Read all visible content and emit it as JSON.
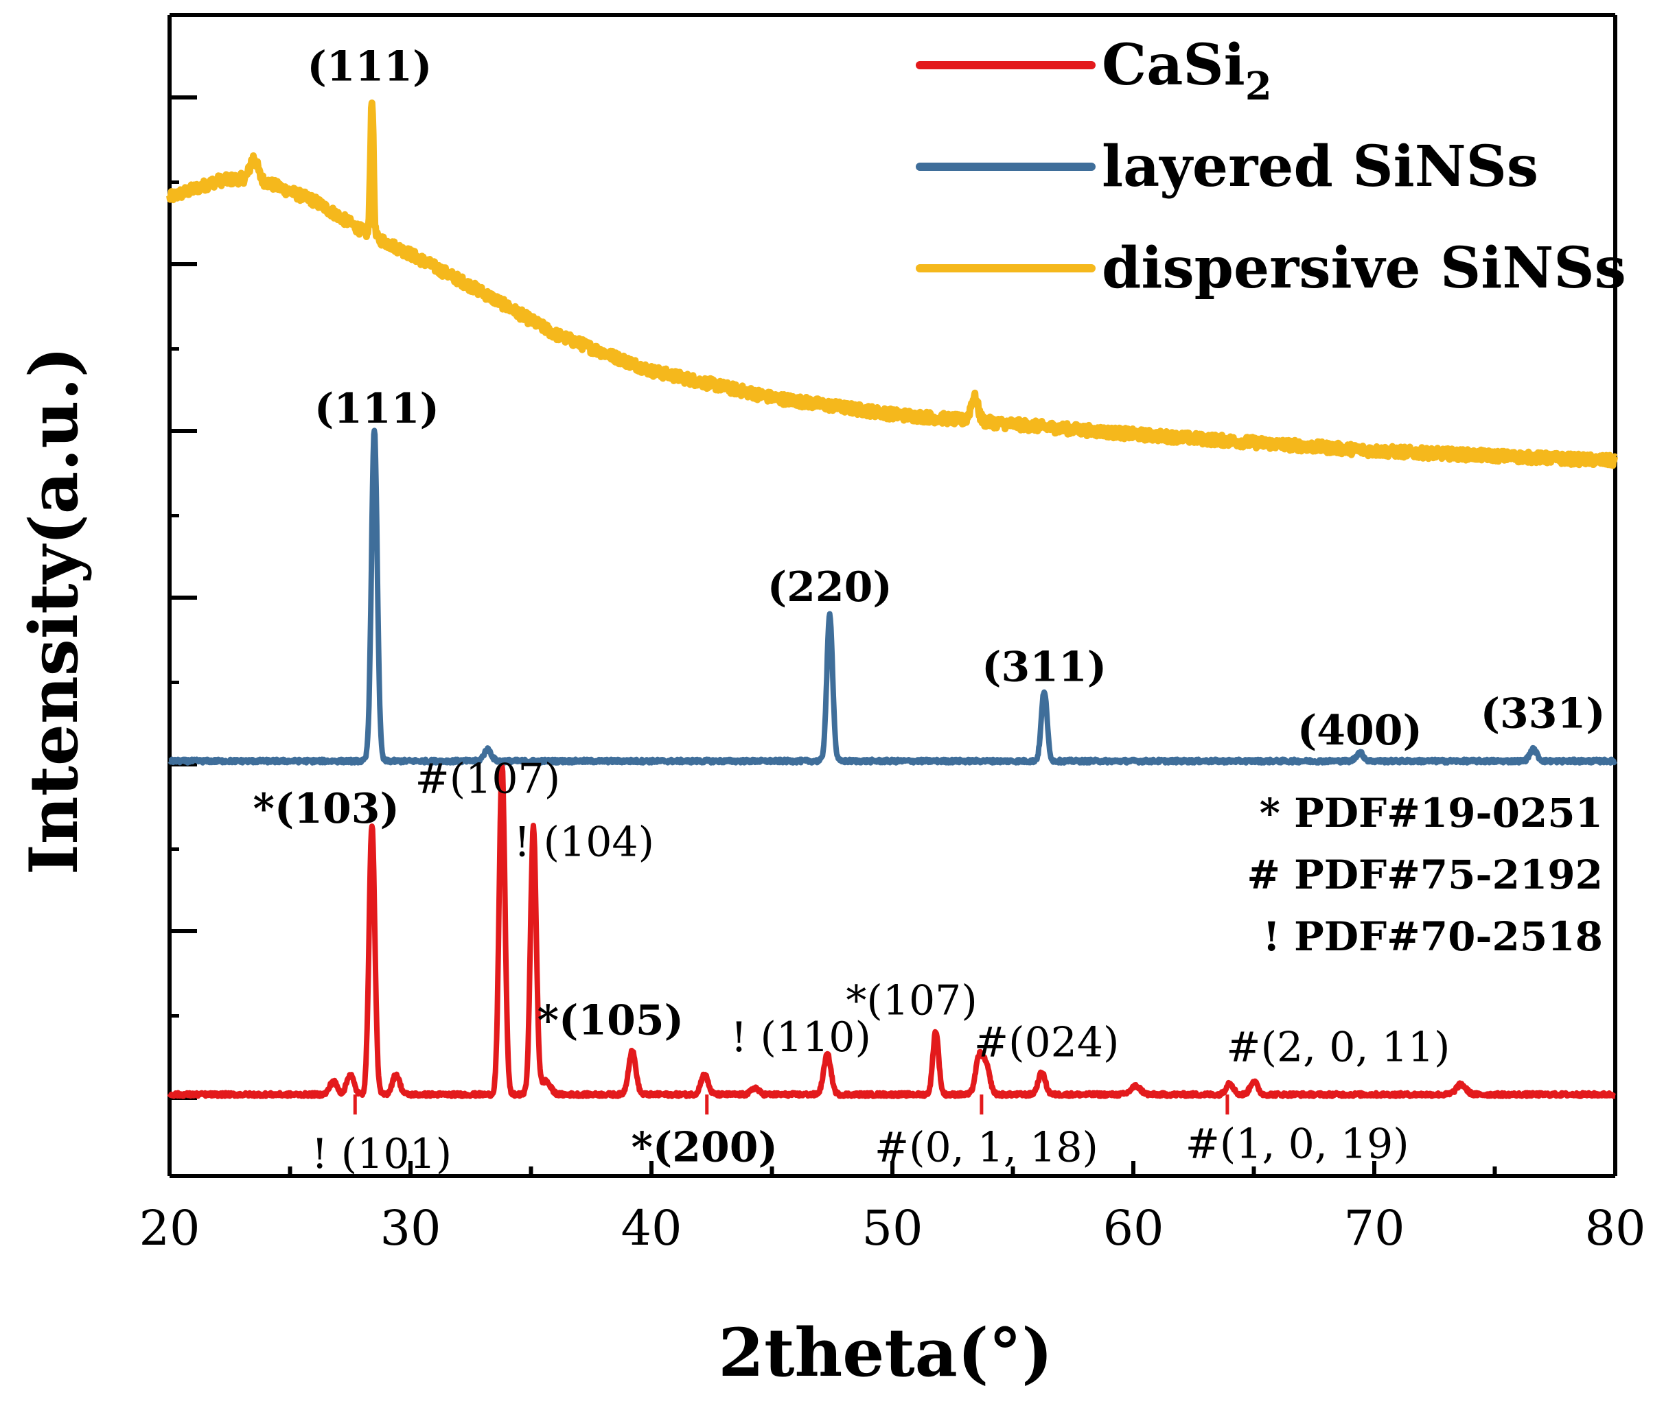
{
  "chart_data": {
    "type": "line",
    "title": "",
    "xlabel": "2theta(°)",
    "ylabel": "Intensity(a.u.)",
    "xlim": [
      20,
      80
    ],
    "ylim": [
      0,
      7
    ],
    "x_ticks": [
      "20",
      "30",
      "40",
      "50",
      "60",
      "70",
      "80"
    ],
    "y_tick_labels_shown": false,
    "legend": {
      "position": "top-right",
      "entries": [
        {
          "name": "CaSi",
          "subscript": "2",
          "color": "#e31a1c"
        },
        {
          "name": "layered SiNSs",
          "color": "#3f6e9a"
        },
        {
          "name": "dispersive SiNSs",
          "color": "#f5b81c"
        }
      ]
    },
    "series": [
      {
        "name": "CaSi2",
        "color": "#e31a1c",
        "baseline": 0.02,
        "peaks": [
          {
            "x": 26.8,
            "h": 0.08,
            "w": 0.15
          },
          {
            "x": 27.5,
            "h": 0.12,
            "w": 0.15
          },
          {
            "x": 28.4,
            "h": 1.62,
            "w": 0.12
          },
          {
            "x": 29.4,
            "h": 0.12,
            "w": 0.15
          },
          {
            "x": 33.8,
            "h": 1.97,
            "w": 0.12
          },
          {
            "x": 35.1,
            "h": 1.6,
            "w": 0.12
          },
          {
            "x": 35.6,
            "h": 0.08,
            "w": 0.2
          },
          {
            "x": 39.2,
            "h": 0.26,
            "w": 0.15
          },
          {
            "x": 42.2,
            "h": 0.12,
            "w": 0.15
          },
          {
            "x": 44.3,
            "h": 0.04,
            "w": 0.15
          },
          {
            "x": 47.3,
            "h": 0.24,
            "w": 0.15
          },
          {
            "x": 51.8,
            "h": 0.38,
            "w": 0.12
          },
          {
            "x": 53.6,
            "h": 0.22,
            "w": 0.15
          },
          {
            "x": 53.9,
            "h": 0.16,
            "w": 0.15
          },
          {
            "x": 56.2,
            "h": 0.13,
            "w": 0.15
          },
          {
            "x": 60.1,
            "h": 0.05,
            "w": 0.2
          },
          {
            "x": 64,
            "h": 0.07,
            "w": 0.15
          },
          {
            "x": 65,
            "h": 0.08,
            "w": 0.15
          },
          {
            "x": 73.6,
            "h": 0.06,
            "w": 0.2
          }
        ]
      },
      {
        "name": "layered SiNSs",
        "color": "#3f6e9a",
        "baseline": 2.02,
        "peaks": [
          {
            "x": 28.5,
            "h": 1.99,
            "w": 0.12
          },
          {
            "x": 33.2,
            "h": 0.07,
            "w": 0.15
          },
          {
            "x": 47.4,
            "h": 0.88,
            "w": 0.12
          },
          {
            "x": 56.3,
            "h": 0.42,
            "w": 0.12
          },
          {
            "x": 69.4,
            "h": 0.05,
            "w": 0.15
          },
          {
            "x": 76.6,
            "h": 0.07,
            "w": 0.15
          }
        ]
      },
      {
        "name": "dispersive SiNSs",
        "color": "#f5b81c",
        "broad_background": [
          [
            20,
            5.4
          ],
          [
            22,
            5.5
          ],
          [
            23.5,
            5.52
          ],
          [
            26,
            5.38
          ],
          [
            28,
            5.2
          ],
          [
            30,
            5.06
          ],
          [
            33,
            4.83
          ],
          [
            36,
            4.58
          ],
          [
            40,
            4.36
          ],
          [
            45,
            4.2
          ],
          [
            50,
            4.1
          ],
          [
            55,
            4.04
          ],
          [
            60,
            3.98
          ],
          [
            65,
            3.93
          ],
          [
            70,
            3.88
          ],
          [
            75,
            3.85
          ],
          [
            80,
            3.82
          ]
        ],
        "peaks": [
          {
            "x": 23.5,
            "h": 0.12,
            "w": 0.15
          },
          {
            "x": 28.4,
            "h": 0.82,
            "w": 0.06
          },
          {
            "x": 53.4,
            "h": 0.14,
            "w": 0.15
          }
        ]
      }
    ],
    "annotations": {
      "dispersive": [
        {
          "text": "(111)",
          "x": 28.3,
          "y": 6.1
        }
      ],
      "layered": [
        {
          "text": "(111)",
          "x": 28.6,
          "y": 4.05
        },
        {
          "text": "(220)",
          "x": 47.4,
          "y": 2.98
        },
        {
          "text": "(311)",
          "x": 56.3,
          "y": 2.5
        },
        {
          "text": "(400)",
          "x": 69.4,
          "y": 2.12
        },
        {
          "text": "(331)",
          "x": 77,
          "y": 2.22
        }
      ],
      "casi2_top": [
        {
          "text": "*(103)",
          "x": 26.5,
          "y": 1.65,
          "bold": true
        },
        {
          "text": "#(107)",
          "x": 33.2,
          "y": 1.83,
          "bold": false
        },
        {
          "text": "! (104)",
          "x": 37.2,
          "y": 1.45,
          "bold": false
        },
        {
          "text": "*(105)",
          "x": 38.3,
          "y": 0.38,
          "bold": true
        },
        {
          "text": "! (110)",
          "x": 46.2,
          "y": 0.28,
          "bold": false
        },
        {
          "text": "*(107)",
          "x": 50.8,
          "y": 0.5,
          "bold": false
        },
        {
          "text": "#(024)",
          "x": 56.4,
          "y": 0.25,
          "bold": false
        },
        {
          "text": "#(2, 0, 11)",
          "x": 68.5,
          "y": 0.22,
          "bold": false
        }
      ],
      "casi2_bottom": [
        {
          "text": "! (101)",
          "x": 28.8,
          "y": -0.42,
          "bold": false
        },
        {
          "text": "*(200)",
          "x": 42.2,
          "y": -0.38,
          "bold": true
        },
        {
          "text": "#(0, 1, 18)",
          "x": 53.9,
          "y": -0.38,
          "bold": false
        },
        {
          "text": "#(1, 0, 19)",
          "x": 66.8,
          "y": -0.36,
          "bold": false
        }
      ],
      "reference_markers": [
        {
          "x": 27.7,
          "y": -0.05
        },
        {
          "x": 42.3,
          "y": -0.05
        },
        {
          "x": 53.7,
          "y": -0.05
        },
        {
          "x": 63.9,
          "y": -0.05
        }
      ],
      "pdf_cards": [
        "* PDF#19-0251",
        "# PDF#75-2192",
        "! PDF#70-2518"
      ]
    }
  }
}
